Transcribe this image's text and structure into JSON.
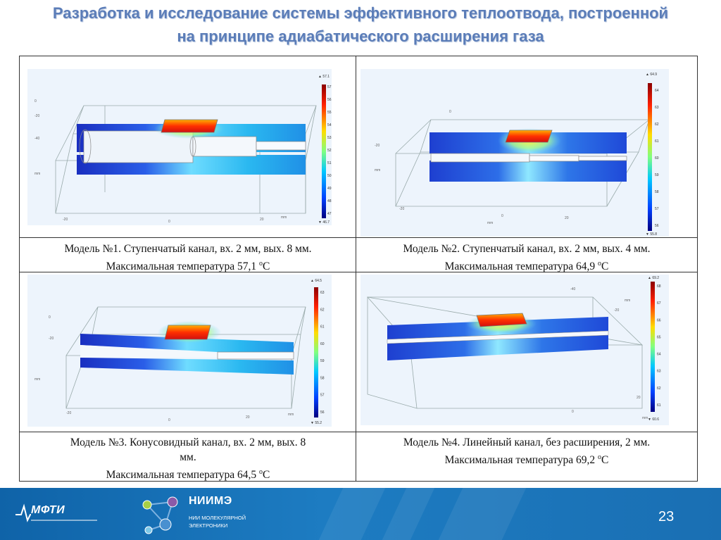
{
  "slide": {
    "title_line1": "Разработка и исследование системы эффективного теплоотвода, построенной",
    "title_line2": "на принципе адиабатического расширения газа",
    "page_number": "23"
  },
  "models": [
    {
      "caption_line1": "Модель №1. Ступенчатый канал, вх. 2 мм, вых. 8 мм.",
      "caption_line2_pre": "Максимальная температура 57,1 ",
      "caption_sup": "o",
      "caption_unit": "C",
      "colorbar_ticks": [
        "57",
        "56",
        "55",
        "54",
        "53",
        "52",
        "51",
        "50",
        "49",
        "48",
        "47"
      ],
      "colorbar_max": "▲ 57.1",
      "colorbar_min": "▼ 46.7",
      "axis_labels": [
        "0",
        "-20",
        "-40",
        "mm",
        "-20",
        "0",
        "20",
        "mm"
      ]
    },
    {
      "caption_line1": "Модель №2. Ступенчатый канал, вх. 2 мм, вых. 4 мм.",
      "caption_line2_pre": "Максимальная температура 64,9 ",
      "caption_sup": "o",
      "caption_unit": "C",
      "colorbar_ticks": [
        "64",
        "63",
        "62",
        "61",
        "60",
        "59",
        "58",
        "57",
        "56"
      ],
      "colorbar_max": "▲ 64.9",
      "colorbar_min": "▼ 55.8",
      "axis_labels": [
        "0",
        "-20",
        "mm",
        "-20",
        "0",
        "20",
        "mm"
      ]
    },
    {
      "caption_line1": "Модель №3. Конусовидный канал, вх. 2 мм, вых. 8",
      "caption_line1b": "мм.",
      "caption_line2_pre": "Максимальная температура 64,5 ",
      "caption_sup": "o",
      "caption_unit": "C",
      "colorbar_ticks": [
        "63",
        "62",
        "61",
        "60",
        "59",
        "58",
        "57",
        "56"
      ],
      "colorbar_max": "▲ 64.5",
      "colorbar_min": "▼ 55.2",
      "axis_labels": [
        "0",
        "-20",
        "mm",
        "-20",
        "0",
        "20",
        "mm"
      ]
    },
    {
      "caption_line1": "Модель №4. Линейный канал, без расширения, 2 мм.",
      "caption_line2_pre": "Максимальная температура 69,2 ",
      "caption_sup": "o",
      "caption_unit": "C",
      "colorbar_ticks": [
        "68",
        "67",
        "66",
        "65",
        "64",
        "63",
        "62",
        "61"
      ],
      "colorbar_max": "▲ 69.2",
      "colorbar_min": "▼ 60.6",
      "axis_labels": [
        "-40",
        "-20",
        "mm",
        "0",
        "20",
        "mm"
      ]
    }
  ],
  "footer": {
    "mfti_logo": "МФТИ",
    "niime_title": "НИИМЭ",
    "niime_sub_line1": "НИИ МОЛЕКУЛЯРНОЙ",
    "niime_sub_line2": "ЭЛЕКТРОНИКИ"
  },
  "colors": {
    "title": "#5b7db8",
    "footer_bg": "#1a6fb3",
    "hot": "#d7191c",
    "cold": "#1f3fbf"
  }
}
